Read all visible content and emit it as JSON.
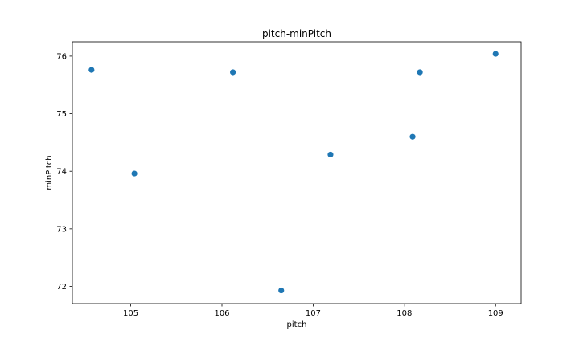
{
  "chart_data": {
    "type": "scatter",
    "title": "pitch-minPitch",
    "xlabel": "pitch",
    "ylabel": "minPitch",
    "xlim": [
      104.36,
      109.28
    ],
    "ylim": [
      71.7,
      76.25
    ],
    "xticks": [
      105,
      106,
      107,
      108,
      109
    ],
    "yticks": [
      72,
      73,
      74,
      75,
      76
    ],
    "grid": false,
    "marker_color": "#1f77b4",
    "points": [
      {
        "x": 104.57,
        "y": 75.76
      },
      {
        "x": 105.04,
        "y": 73.96
      },
      {
        "x": 106.12,
        "y": 75.72
      },
      {
        "x": 106.65,
        "y": 71.93
      },
      {
        "x": 107.19,
        "y": 74.29
      },
      {
        "x": 108.09,
        "y": 74.6
      },
      {
        "x": 108.17,
        "y": 75.72
      },
      {
        "x": 109.0,
        "y": 76.04
      }
    ]
  }
}
